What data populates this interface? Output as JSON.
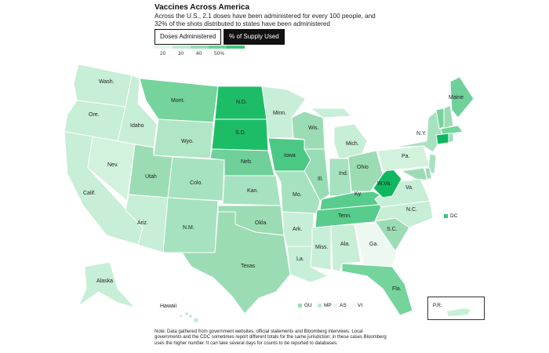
{
  "header": {
    "title": "Vaccines Across America",
    "subtitle": "Across the U.S., 2.1 doses have been administered for every 100 people, and 32% of the shots distributed to states have been administered"
  },
  "tabs": [
    {
      "label": "Doses Administered",
      "active": false
    },
    {
      "label": "% of Supply Used",
      "active": true
    }
  ],
  "legend": {
    "ticks": [
      "20",
      "30",
      "40",
      "50%"
    ],
    "colors": [
      "#e3f6ea",
      "#bfead0",
      "#98dcb5",
      "#6fd09a",
      "#3ec47c",
      "#0fb860"
    ]
  },
  "states": {
    "wa": "Wash.",
    "or": "Ore.",
    "ca": "Calif.",
    "id": "Idaho",
    "nv": "Nev.",
    "mt": "Mont.",
    "wy": "Wyo.",
    "ut": "Utah",
    "az": "Ariz.",
    "co": "Colo.",
    "nm": "N.M.",
    "nd": "N.D.",
    "sd": "S.D.",
    "ne": "Neb.",
    "ks": "Kan.",
    "ok": "Okla.",
    "tx": "Texas",
    "mn": "Minn.",
    "ia": "Iowa",
    "mo": "Mo.",
    "ar": "Ark.",
    "la": "La.",
    "wi": "Wis.",
    "il": "Ill.",
    "ms": "Miss.",
    "mi": "Mich.",
    "in": "Ind.",
    "ky": "Ky.",
    "tn": "Tenn.",
    "al": "Ala.",
    "oh": "Ohio",
    "ga": "Ga.",
    "fl": "Fla.",
    "sc": "S.C.",
    "nc": "N.C.",
    "va": "Va.",
    "wv": "W.Va.",
    "pa": "Pa.",
    "ny": "N.Y.",
    "me": "Maine",
    "ak": "Alaska",
    "hi": "Hawaii"
  },
  "territories": [
    "GU",
    "MP",
    "AS",
    "VI"
  ],
  "dc_label": "DC",
  "pr_label": "P.R.",
  "note": "Note: Data gathered from government websites, official statements and Bloomberg interviews. Local governments and the CDC sometimes report different totals for the same jurisdiction; in these cases Bloomberg uses the higher number. It can take several days for counts to be reported to databases."
}
